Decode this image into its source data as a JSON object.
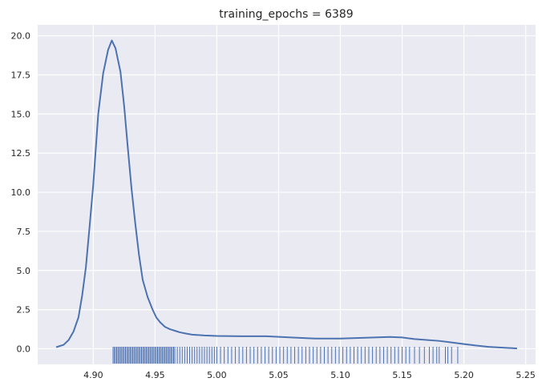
{
  "chart_data": {
    "type": "line",
    "title": "training_epochs = 6389",
    "xlabel": "",
    "ylabel": "",
    "xlim": [
      4.855,
      5.258
    ],
    "ylim": [
      -1.0,
      20.7
    ],
    "grid": true,
    "background": "#eaeaf2",
    "line_color": "#4c72b0",
    "x_ticks": [
      4.9,
      4.95,
      5.0,
      5.05,
      5.1,
      5.15,
      5.2,
      5.25
    ],
    "x_tick_labels": [
      "4.90",
      "4.95",
      "5.00",
      "5.05",
      "5.10",
      "5.15",
      "5.20",
      "5.25"
    ],
    "y_ticks": [
      0.0,
      2.5,
      5.0,
      7.5,
      10.0,
      12.5,
      15.0,
      17.5,
      20.0
    ],
    "y_tick_labels": [
      "0.0",
      "2.5",
      "5.0",
      "7.5",
      "10.0",
      "12.5",
      "15.0",
      "17.5",
      "20.0"
    ],
    "series": [
      {
        "kind": "kde",
        "x": [
          4.87,
          4.876,
          4.88,
          4.884,
          4.888,
          4.891,
          4.894,
          4.897,
          4.9,
          4.904,
          4.908,
          4.912,
          4.915,
          4.918,
          4.922,
          4.925,
          4.928,
          4.931,
          4.934,
          4.937,
          4.94,
          4.944,
          4.948,
          4.951,
          4.954,
          4.958,
          4.962,
          4.966,
          4.97,
          4.975,
          4.98,
          4.99,
          5.0,
          5.02,
          5.04,
          5.06,
          5.08,
          5.1,
          5.12,
          5.14,
          5.15,
          5.16,
          5.18,
          5.19,
          5.2,
          5.21,
          5.22,
          5.243
        ],
        "y": [
          0.1,
          0.25,
          0.55,
          1.1,
          2.0,
          3.4,
          5.2,
          7.8,
          10.5,
          15.0,
          17.6,
          19.1,
          19.7,
          19.2,
          17.7,
          15.5,
          12.8,
          10.2,
          8.0,
          6.0,
          4.4,
          3.3,
          2.5,
          2.0,
          1.7,
          1.4,
          1.25,
          1.15,
          1.05,
          0.97,
          0.9,
          0.85,
          0.82,
          0.8,
          0.8,
          0.72,
          0.65,
          0.65,
          0.7,
          0.75,
          0.72,
          0.62,
          0.5,
          0.4,
          0.3,
          0.2,
          0.12,
          0.02
        ]
      },
      {
        "kind": "rug",
        "x": [
          4.916,
          4.917,
          4.918,
          4.919,
          4.92,
          4.921,
          4.922,
          4.923,
          4.924,
          4.925,
          4.926,
          4.927,
          4.928,
          4.929,
          4.93,
          4.931,
          4.932,
          4.933,
          4.934,
          4.935,
          4.936,
          4.937,
          4.938,
          4.939,
          4.94,
          4.941,
          4.942,
          4.943,
          4.944,
          4.945,
          4.946,
          4.947,
          4.948,
          4.949,
          4.95,
          4.951,
          4.952,
          4.953,
          4.954,
          4.955,
          4.956,
          4.957,
          4.958,
          4.959,
          4.96,
          4.961,
          4.962,
          4.963,
          4.964,
          4.965,
          4.966,
          4.968,
          4.97,
          4.972,
          4.974,
          4.976,
          4.978,
          4.98,
          4.982,
          4.984,
          4.986,
          4.988,
          4.99,
          4.992,
          4.994,
          4.996,
          4.998,
          5.0,
          5.003,
          5.006,
          5.009,
          5.012,
          5.015,
          5.018,
          5.021,
          5.024,
          5.027,
          5.03,
          5.033,
          5.036,
          5.039,
          5.042,
          5.045,
          5.048,
          5.051,
          5.054,
          5.057,
          5.06,
          5.063,
          5.066,
          5.069,
          5.072,
          5.075,
          5.078,
          5.081,
          5.084,
          5.087,
          5.09,
          5.093,
          5.096,
          5.099,
          5.102,
          5.105,
          5.108,
          5.111,
          5.114,
          5.117,
          5.12,
          5.123,
          5.126,
          5.129,
          5.132,
          5.135,
          5.138,
          5.141,
          5.144,
          5.147,
          5.15,
          5.153,
          5.156,
          5.16,
          5.164,
          5.168,
          5.172,
          5.175,
          5.178,
          5.18,
          5.185,
          5.187,
          5.19,
          5.195
        ]
      }
    ]
  }
}
